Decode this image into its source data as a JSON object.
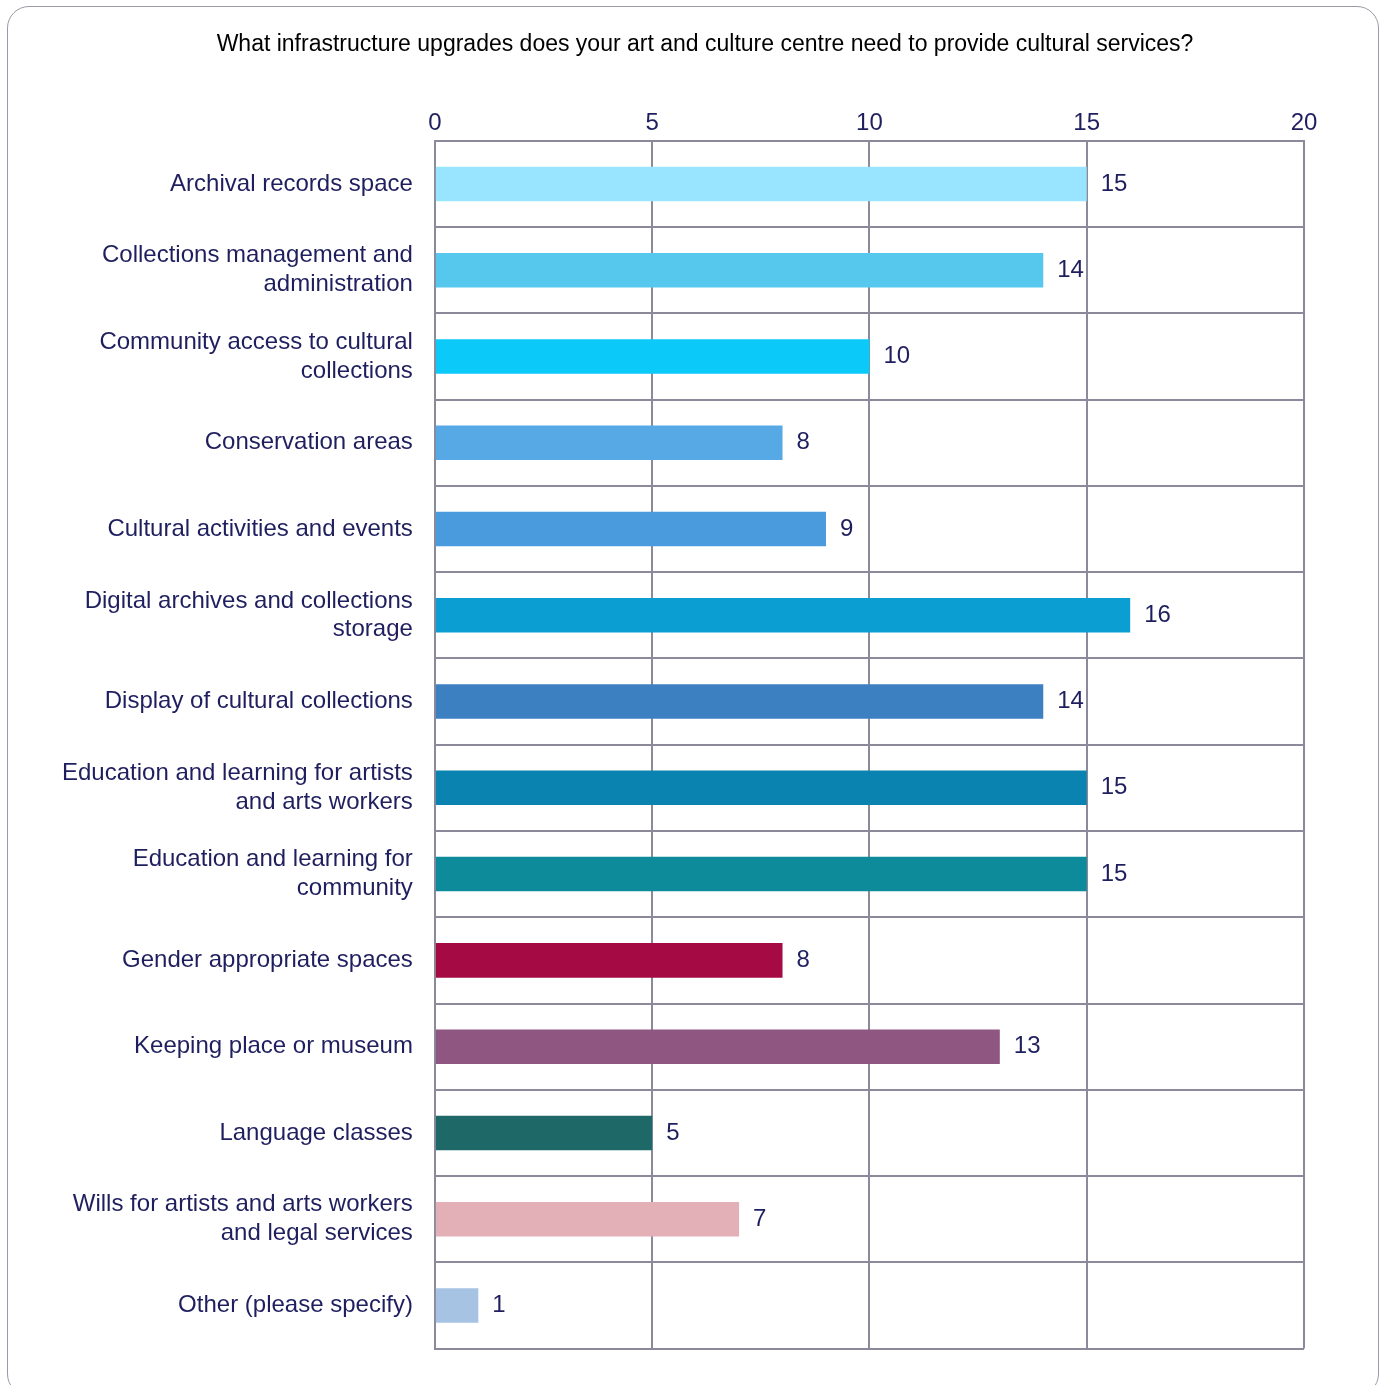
{
  "chart_data": {
    "type": "bar",
    "orientation": "horizontal",
    "title": "What infrastructure upgrades does your art and culture centre need to provide cultural services?",
    "categories": [
      "Archival records space",
      "Collections management and administration",
      "Community access to cultural collections",
      "Conservation areas",
      "Cultural activities and events",
      "Digital archives and collections storage",
      "Display of cultural collections",
      "Education and learning for artists and arts workers",
      "Education and learning for community",
      "Gender appropriate spaces",
      "Keeping place or museum",
      "Language classes",
      "Wills for artists and arts workers and legal services",
      "Other (please specify)"
    ],
    "values": [
      15,
      14,
      10,
      8,
      9,
      16,
      14,
      15,
      15,
      8,
      13,
      5,
      7,
      1
    ],
    "colors": [
      "#99e5ff",
      "#56c8ee",
      "#0bc9f9",
      "#57a9e6",
      "#4a9ade",
      "#0a9ed2",
      "#3d80c2",
      "#0b83b0",
      "#0e8b9b",
      "#a50a44",
      "#8e5680",
      "#1f6868",
      "#e4b0b8",
      "#a6c3e4"
    ],
    "xlim": [
      0,
      20
    ],
    "xticks": [
      0,
      5,
      10,
      15,
      20
    ],
    "grid": true,
    "legend": false,
    "data_labels": true
  }
}
